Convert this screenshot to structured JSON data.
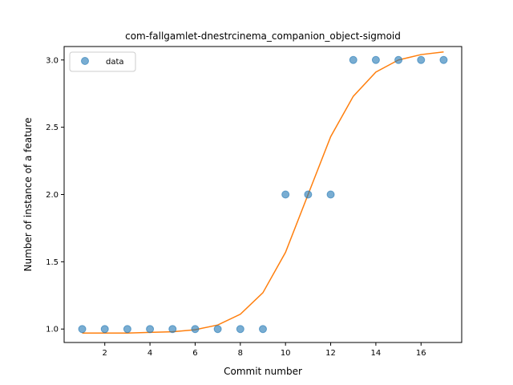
{
  "chart_data": {
    "type": "scatter",
    "title": "com-fallgamlet-dnestrcinema_companion_object-sigmoid",
    "xlabel": "Commit number",
    "ylabel": "Number of instance of a feature",
    "xlim": [
      0.2,
      17.8
    ],
    "ylim": [
      0.9,
      3.1
    ],
    "x_ticks": [
      2,
      4,
      6,
      8,
      10,
      12,
      14,
      16
    ],
    "y_ticks": [
      1.0,
      1.5,
      2.0,
      2.5,
      3.0
    ],
    "x_tick_labels": [
      "2",
      "4",
      "6",
      "8",
      "10",
      "12",
      "14",
      "16"
    ],
    "y_tick_labels": [
      "1.0",
      "1.5",
      "2.0",
      "2.5",
      "3.0"
    ],
    "grid": false,
    "legend_position": "top-left",
    "colors": {
      "data": "#1f77b4",
      "fit": "#ff7f0e"
    },
    "series": [
      {
        "name": "data",
        "kind": "points",
        "x": [
          1,
          2,
          3,
          4,
          5,
          6,
          7,
          8,
          9,
          10,
          11,
          12,
          13,
          14,
          15,
          16,
          17
        ],
        "y": [
          1,
          1,
          1,
          1,
          1,
          1,
          1,
          1,
          1,
          2,
          2,
          2,
          3,
          3,
          3,
          3,
          3
        ]
      },
      {
        "kind": "line",
        "x": [
          1,
          2,
          3,
          4,
          5,
          6,
          7,
          8,
          9,
          10,
          11,
          12,
          13,
          14,
          15,
          16,
          17
        ],
        "y": [
          0.97,
          0.97,
          0.97,
          0.975,
          0.98,
          0.995,
          1.03,
          1.11,
          1.27,
          1.57,
          2.0,
          2.43,
          2.73,
          2.91,
          3.0,
          3.04,
          3.06
        ]
      }
    ]
  }
}
